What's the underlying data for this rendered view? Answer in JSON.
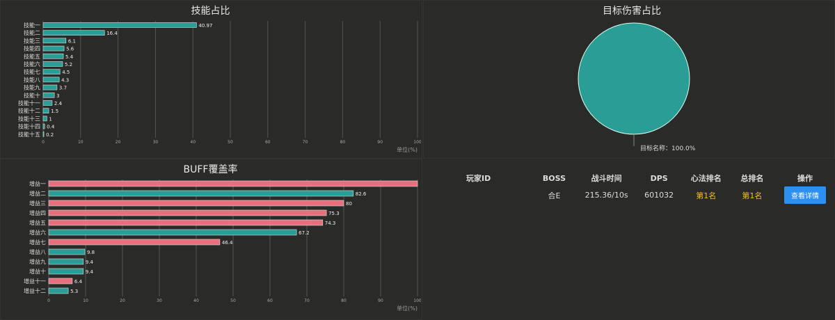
{
  "colors": {
    "teal": "#2a9d96",
    "pink": "#e8707e",
    "background": "#2a2a29",
    "button": "#2d8ff0",
    "rank": "#f5c400"
  },
  "chart_data": [
    {
      "type": "bar",
      "title": "技能占比",
      "orientation": "horizontal",
      "xlim": [
        0,
        100
      ],
      "ticks": [
        "0",
        "10",
        "20",
        "30",
        "40",
        "50",
        "60",
        "70",
        "80",
        "90",
        "100"
      ],
      "axis_unit": "单位(%)",
      "categories": [
        "技能一",
        "技能二",
        "技能三",
        "技能四",
        "技能五",
        "技能六",
        "技能七",
        "技能八",
        "技能九",
        "技能十",
        "技能十一",
        "技能十二",
        "技能十三",
        "技能十四",
        "技能十五"
      ],
      "values": [
        40.97,
        16.4,
        6.1,
        5.6,
        5.4,
        5.2,
        4.5,
        4.3,
        3.7,
        3.0,
        2.4,
        1.5,
        1.0,
        0.4,
        0.2
      ],
      "colors": [
        "teal"
      ]
    },
    {
      "type": "bar",
      "title": "BUFF覆盖率",
      "orientation": "horizontal",
      "xlim": [
        0,
        100
      ],
      "ticks": [
        "0",
        "10",
        "20",
        "30",
        "40",
        "50",
        "60",
        "70",
        "80",
        "90",
        "100"
      ],
      "axis_unit": "单位(%)",
      "categories": [
        "增益一",
        "增益二",
        "增益三",
        "增益四",
        "增益五",
        "增益六",
        "增益七",
        "增益八",
        "增益九",
        "增益十",
        "增益十一",
        "增益十二"
      ],
      "values": [
        100,
        82.6,
        80.0,
        75.3,
        74.3,
        67.2,
        46.4,
        9.8,
        9.4,
        9.4,
        6.4,
        5.3
      ],
      "colors": [
        "pink",
        "teal",
        "pink",
        "pink",
        "pink",
        "teal",
        "pink",
        "teal",
        "teal",
        "teal",
        "pink",
        "teal"
      ]
    },
    {
      "type": "pie",
      "title": "目标伤害占比",
      "slices": [
        {
          "label": "目标名称",
          "value": 100.0
        }
      ],
      "label_text": "目标名称：100.0%"
    }
  ],
  "table": {
    "headers": [
      "玩家ID",
      "BOSS",
      "战斗时间",
      "DPS",
      "心法排名",
      "总排名",
      "操作"
    ],
    "row": {
      "player": "",
      "boss": "合E",
      "time": "215.36/10s",
      "dps": "601032",
      "rank1": "第1名",
      "rank2": "第1名",
      "action": "查看详情"
    }
  }
}
